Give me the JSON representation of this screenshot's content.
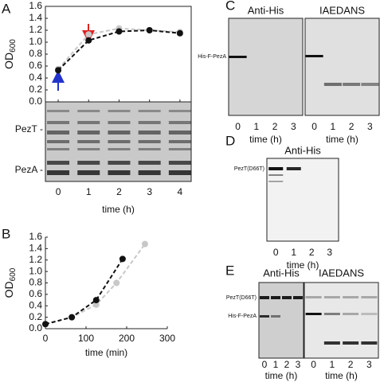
{
  "chart_data": [
    {
      "type": "line",
      "label": "A",
      "ylabel": "OD",
      "ylabel_sub": "600",
      "x": [
        0,
        1,
        2,
        3,
        4
      ],
      "xlim": [
        -0.42,
        4.37
      ],
      "xticks": [
        0,
        1,
        2,
        3,
        4
      ],
      "xlabel": "time (h)",
      "ylim": [
        0,
        1.6
      ],
      "yticks": [
        {
          "value": 0,
          "label": "0.0"
        },
        0.2,
        0.4,
        0.6,
        0.8,
        {
          "value": 1,
          "label": "1.0"
        },
        1.2,
        1.4,
        1.6
      ],
      "series": [
        {
          "color": "#c8c8c8",
          "values": [
            0.55,
            1.13,
            1.23,
            1.2,
            1.17
          ]
        },
        {
          "color": "#111111",
          "values": [
            0.53,
            1.03,
            1.18,
            1.2,
            1.15
          ]
        }
      ],
      "gel_labels": [
        "PezT -",
        "PezA -"
      ]
    },
    {
      "type": "line",
      "label": "B",
      "ylabel": "OD",
      "ylabel_sub": "600",
      "xlim": [
        0,
        300
      ],
      "xticks": [
        0,
        100,
        200,
        300
      ],
      "xlabel": "time (min)",
      "ylim": [
        0,
        1.6
      ],
      "yticks": [
        {
          "value": 0,
          "label": "0.0"
        },
        0.2,
        0.4,
        0.6,
        0.8,
        {
          "value": 1,
          "label": "1.0"
        },
        1.2,
        1.4,
        1.6
      ],
      "series": [
        {
          "color": "#c8c8c8",
          "x": [
            0,
            65,
            125,
            175,
            245
          ],
          "values": [
            0.08,
            0.2,
            0.42,
            0.8,
            1.48
          ]
        },
        {
          "color": "#111111",
          "x": [
            0,
            65,
            125,
            190
          ],
          "values": [
            0.08,
            0.2,
            0.5,
            1.22
          ]
        }
      ]
    }
  ],
  "panels": [
    {
      "label": "C",
      "titles": [
        "Anti-His",
        "IAEDANS"
      ],
      "bands": [
        "His-F-PezA"
      ],
      "lanes": [
        0,
        1,
        2,
        3
      ],
      "xlabel": "time (h)"
    },
    {
      "label": "D",
      "titles": [
        "Anti-His"
      ],
      "bands": [
        "PezT(D66T)"
      ],
      "lanes": [
        0,
        1,
        2,
        3
      ],
      "xlabel": "time (h)"
    },
    {
      "label": "E",
      "titles": [
        "Anti-His",
        "IAEDANS"
      ],
      "bands": [
        "PezT(D66T)",
        "His-F-PezA"
      ],
      "lanes": [
        0,
        1,
        2,
        3
      ],
      "xlabel": "time (h)"
    }
  ]
}
